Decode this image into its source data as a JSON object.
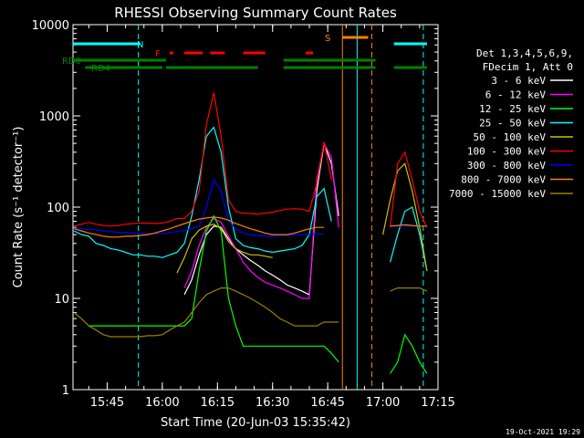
{
  "chart_data": {
    "type": "line",
    "title": "RHESSI Observing Summary Count Rates",
    "xlabel": "Start Time (20-Jun-03 15:35:42)",
    "ylabel": "Count Rate (s⁻¹ detector⁻¹)",
    "yscale": "log",
    "ylim": [
      1,
      10000
    ],
    "xlim": [
      "15:35:42",
      "17:15:00"
    ],
    "x_ticks": [
      "15:45",
      "16:00",
      "16:15",
      "16:30",
      "16:45",
      "17:00",
      "17:15"
    ],
    "y_ticks": [
      "1",
      "10",
      "100",
      "1000",
      "10000"
    ],
    "grid": false,
    "legend_position": "right",
    "legend_header": [
      "Det 1,3,4,5,6,9,",
      "FDecim 1, Att 0"
    ],
    "footer_date": "19-Oct-2021 19:29",
    "time_grid": [
      "15:36",
      "15:38",
      "15:40",
      "15:42",
      "15:44",
      "15:46",
      "15:48",
      "15:50",
      "15:52",
      "15:54",
      "15:56",
      "15:58",
      "16:00",
      "16:02",
      "16:04",
      "16:06",
      "16:08",
      "16:10",
      "16:12",
      "16:14",
      "16:16",
      "16:18",
      "16:20",
      "16:22",
      "16:24",
      "16:26",
      "16:28",
      "16:30",
      "16:32",
      "16:34",
      "16:36",
      "16:38",
      "16:40",
      "16:42",
      "16:44",
      "16:46",
      "16:48",
      "16:50",
      "16:52",
      "16:54",
      "16:56",
      "16:58",
      "17:00",
      "17:02",
      "17:04",
      "17:06",
      "17:08",
      "17:10",
      "17:12"
    ],
    "series": [
      {
        "name": "3 - 6 keV",
        "color": "#ffffff",
        "values": [
          null,
          null,
          null,
          null,
          null,
          null,
          null,
          null,
          null,
          null,
          null,
          null,
          null,
          null,
          null,
          11,
          16,
          30,
          50,
          62,
          60,
          45,
          35,
          30,
          26,
          23,
          20,
          18,
          16,
          14,
          13,
          12,
          11,
          150,
          500,
          300,
          80,
          null,
          null,
          null,
          null,
          null,
          null,
          null,
          null,
          null,
          null,
          null,
          null
        ]
      },
      {
        "name": "6 - 12 keV",
        "color": "#ff00ff",
        "values": [
          null,
          null,
          null,
          null,
          null,
          null,
          null,
          null,
          null,
          null,
          null,
          null,
          null,
          null,
          null,
          13,
          20,
          38,
          60,
          75,
          68,
          48,
          35,
          25,
          20,
          17,
          15,
          14,
          13,
          12,
          11,
          10,
          10,
          200,
          500,
          350,
          60,
          null,
          null,
          null,
          null,
          null,
          null,
          null,
          null,
          null,
          null,
          null,
          null
        ]
      },
      {
        "name": "12 - 25 keV",
        "color": "#00ff00",
        "values": [
          null,
          null,
          5,
          5,
          5,
          5,
          5,
          5,
          5,
          5,
          5,
          5,
          5,
          5,
          5,
          5,
          6,
          20,
          55,
          80,
          55,
          10,
          5,
          3,
          3,
          3,
          3,
          3,
          3,
          3,
          3,
          3,
          3,
          3,
          3,
          2.5,
          2,
          null,
          null,
          null,
          null,
          null,
          null,
          1.5,
          2,
          4,
          3,
          2,
          1.5
        ]
      },
      {
        "name": "25 - 50 keV",
        "color": "#00ffff",
        "values": [
          55,
          50,
          48,
          40,
          38,
          35,
          34,
          32,
          30,
          30,
          29,
          29,
          28,
          30,
          32,
          40,
          80,
          200,
          600,
          750,
          400,
          100,
          45,
          38,
          36,
          35,
          33,
          32,
          33,
          34,
          35,
          38,
          50,
          130,
          160,
          70,
          null,
          null,
          null,
          null,
          null,
          null,
          null,
          25,
          50,
          90,
          100,
          50,
          20
        ]
      },
      {
        "name": "50 - 100 keV",
        "color": "#ccc000",
        "values": [
          null,
          null,
          null,
          null,
          null,
          null,
          null,
          null,
          null,
          null,
          null,
          null,
          null,
          null,
          19,
          28,
          45,
          56,
          62,
          65,
          58,
          42,
          35,
          32,
          30,
          30,
          29,
          28,
          null,
          null,
          null,
          null,
          null,
          null,
          null,
          null,
          null,
          null,
          null,
          null,
          null,
          null,
          50,
          120,
          250,
          300,
          150,
          60,
          20
        ]
      },
      {
        "name": "100 - 300 keV",
        "color": "#ff0000",
        "values": [
          62,
          65,
          68,
          65,
          63,
          62,
          63,
          65,
          66,
          67,
          67,
          66,
          67,
          70,
          75,
          75,
          90,
          150,
          800,
          1800,
          600,
          120,
          90,
          86,
          85,
          84,
          86,
          88,
          92,
          95,
          96,
          95,
          90,
          180,
          520,
          200,
          null,
          null,
          null,
          null,
          null,
          null,
          null,
          60,
          300,
          400,
          200,
          90,
          60
        ]
      },
      {
        "name": "300 - 800 keV",
        "color": "#0000ff",
        "values": [
          59,
          58,
          57,
          56,
          55,
          54,
          53,
          53,
          52,
          52,
          51,
          51,
          51,
          53,
          54,
          56,
          58,
          62,
          100,
          200,
          150,
          70,
          58,
          52,
          50,
          49,
          48,
          48,
          49,
          49,
          50,
          50,
          50,
          51,
          51,
          null,
          null,
          null,
          null,
          null,
          null,
          null,
          null,
          62,
          62,
          62,
          62,
          62,
          62
        ]
      },
      {
        "name": "800 - 7000 keV",
        "color": "#ff8000",
        "values": [
          58,
          55,
          52,
          50,
          48,
          47,
          47,
          48,
          48,
          49,
          50,
          52,
          55,
          58,
          62,
          66,
          70,
          74,
          76,
          78,
          76,
          72,
          66,
          62,
          58,
          55,
          52,
          50,
          50,
          50,
          52,
          55,
          58,
          60,
          60,
          null,
          null,
          null,
          null,
          null,
          null,
          null,
          null,
          62,
          63,
          64,
          63,
          62,
          62
        ]
      },
      {
        "name": "7000 - 15000 keV",
        "color": "#9a8000",
        "values": [
          7,
          6,
          5,
          4.5,
          4,
          3.8,
          3.8,
          3.8,
          3.8,
          3.8,
          3.9,
          3.9,
          4,
          4.5,
          5,
          5.5,
          7,
          9,
          11,
          12,
          13,
          13,
          12,
          11,
          10,
          9,
          8,
          7,
          6,
          5.5,
          5,
          5,
          5,
          5,
          5.5,
          5.5,
          5.5,
          null,
          null,
          null,
          null,
          null,
          null,
          12,
          13,
          13,
          13,
          13,
          12
        ]
      }
    ],
    "state_flags": [
      {
        "label": "N",
        "color": "#00ffff",
        "segments": [
          [
            "15:35:42",
            "15:54"
          ],
          [
            "17:03",
            "17:12"
          ]
        ]
      },
      {
        "label": "F",
        "color": "#ff0000",
        "segments": [
          [
            "16:02",
            "16:03"
          ],
          [
            "16:06",
            "16:11"
          ],
          [
            "16:13",
            "16:17"
          ],
          [
            "16:22",
            "16:28"
          ],
          [
            "16:39",
            "16:41"
          ]
        ]
      },
      {
        "label": "S",
        "color": "#ff8000",
        "segments": [
          [
            "16:49",
            "16:56"
          ]
        ]
      },
      {
        "label": "RD0",
        "color": "#008000",
        "segments": [
          [
            "15:35:42",
            "16:01"
          ],
          [
            "16:33",
            "16:58"
          ]
        ]
      },
      {
        "label": "RD4",
        "color": "#008000",
        "segments": [
          [
            "15:39",
            "16:00"
          ],
          [
            "16:01",
            "16:26"
          ],
          [
            "16:33",
            "16:58"
          ],
          [
            "17:03",
            "17:12"
          ]
        ]
      }
    ],
    "markers": [
      {
        "time": "15:53:30",
        "color": "#00ffff",
        "style": "dashed"
      },
      {
        "time": "16:49",
        "color": "#ff8000",
        "style": "solid"
      },
      {
        "time": "16:53",
        "color": "#00ffff",
        "style": "solid"
      },
      {
        "time": "16:57",
        "color": "#ff8000",
        "style": "dashed"
      },
      {
        "time": "17:11",
        "color": "#00ffff",
        "style": "dashed"
      }
    ]
  }
}
